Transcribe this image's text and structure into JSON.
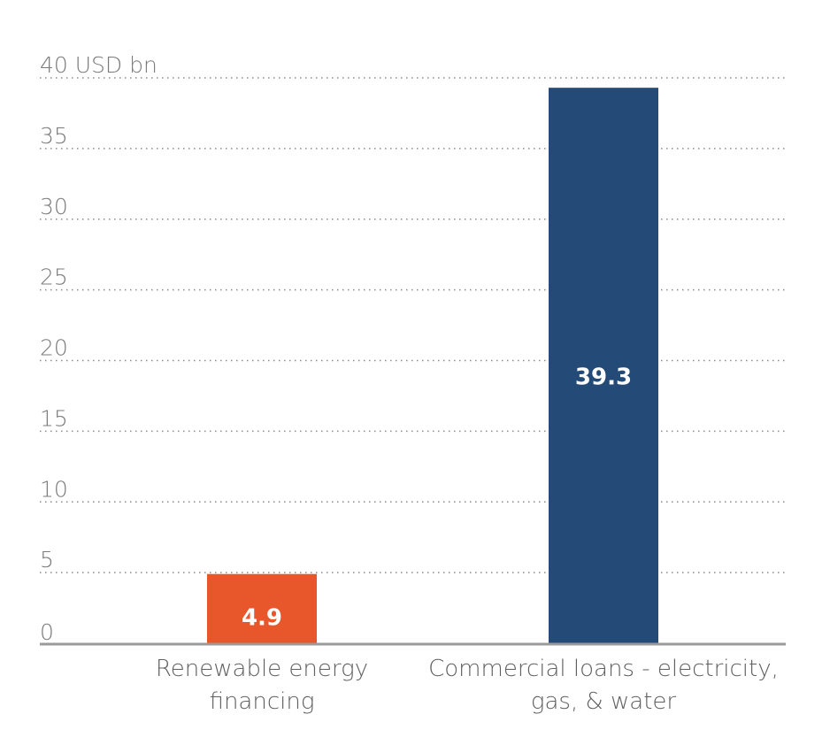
{
  "chart_data": {
    "type": "bar",
    "categories": [
      [
        "Renewable energy",
        "financing"
      ],
      [
        "Commercial loans - electricity,",
        "gas, & water"
      ]
    ],
    "values": [
      4.9,
      39.3
    ],
    "data_labels": [
      "4.9",
      "39.3"
    ],
    "bar_colors": [
      "#e8572c",
      "#244a78"
    ],
    "y_ticks": [
      "0",
      "5",
      "10",
      "15",
      "20",
      "25",
      "30",
      "35",
      "40 USD bn"
    ],
    "y_tick_values": [
      0,
      5,
      10,
      15,
      20,
      25,
      30,
      35,
      40
    ],
    "ylim": [
      0,
      40
    ],
    "grid": true,
    "title": "",
    "xlabel": "",
    "ylabel": ""
  }
}
